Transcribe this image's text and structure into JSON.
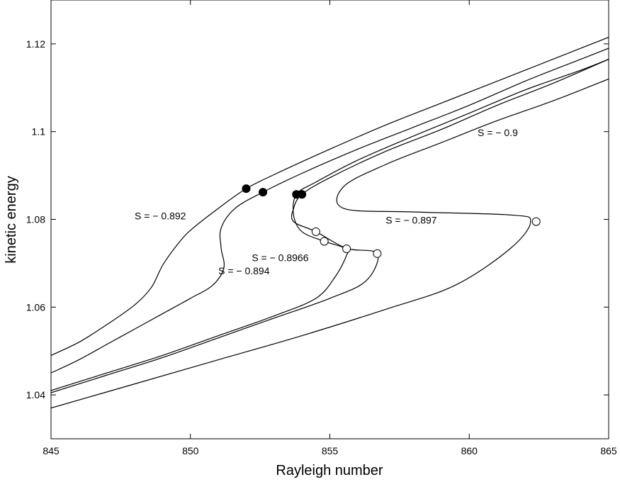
{
  "chart_data": {
    "type": "line",
    "title": "",
    "xlabel": "Rayleigh number",
    "ylabel": "kinetic energy",
    "xlim": [
      845,
      865
    ],
    "ylim": [
      1.03,
      1.13
    ],
    "xticks": [
      845,
      850,
      855,
      860,
      865
    ],
    "xtick_labels": [
      "845",
      "850",
      "855",
      "860",
      "865"
    ],
    "yticks": [
      1.04,
      1.06,
      1.08,
      1.1,
      1.12
    ],
    "ytick_labels": [
      "1.04",
      "1.06",
      "1.08",
      "1.1",
      "1.12"
    ],
    "grid": false,
    "line_color": "#000000",
    "series": [
      {
        "name": "S = − 0.892",
        "points": [
          [
            845,
            1.049
          ],
          [
            846,
            1.052
          ],
          [
            847,
            1.056
          ],
          [
            848,
            1.0605
          ],
          [
            848.6,
            1.0645
          ],
          [
            849,
            1.0695
          ],
          [
            849.5,
            1.074
          ],
          [
            850,
            1.0775
          ],
          [
            851,
            1.0825
          ],
          [
            852,
            1.087
          ],
          [
            853,
            1.0902
          ],
          [
            855,
            1.096
          ],
          [
            857,
            1.1015
          ],
          [
            859,
            1.1065
          ],
          [
            861,
            1.1115
          ],
          [
            863,
            1.1165
          ],
          [
            865,
            1.1215
          ]
        ]
      },
      {
        "name": "S = − 0.894",
        "points": [
          [
            845,
            1.045
          ],
          [
            846,
            1.048
          ],
          [
            847,
            1.0515
          ],
          [
            848,
            1.055
          ],
          [
            849,
            1.0585
          ],
          [
            850,
            1.062
          ],
          [
            850.8,
            1.065
          ],
          [
            851.2,
            1.069
          ],
          [
            851.1,
            1.0735
          ],
          [
            851.1,
            1.078
          ],
          [
            851.6,
            1.0825
          ],
          [
            852.6,
            1.0862
          ],
          [
            854,
            1.0905
          ],
          [
            856,
            1.096
          ],
          [
            858,
            1.101
          ],
          [
            860,
            1.106
          ],
          [
            862,
            1.1115
          ],
          [
            864,
            1.1165
          ],
          [
            865,
            1.119
          ]
        ]
      },
      {
        "name": "S = − 0.8966",
        "points": [
          [
            845,
            1.041
          ],
          [
            847,
            1.045
          ],
          [
            849,
            1.049
          ],
          [
            851,
            1.0535
          ],
          [
            853,
            1.058
          ],
          [
            854.5,
            1.062
          ],
          [
            855.2,
            1.067
          ],
          [
            855.6,
            1.0718
          ],
          [
            855.6,
            1.0733
          ],
          [
            854.8,
            1.075
          ],
          [
            854,
            1.0772
          ],
          [
            853.7,
            1.081
          ],
          [
            853.8,
            1.0857
          ],
          [
            854.5,
            1.0885
          ],
          [
            856,
            1.0935
          ],
          [
            858,
            1.099
          ],
          [
            860,
            1.1042
          ],
          [
            862,
            1.1095
          ],
          [
            864,
            1.114
          ],
          [
            865,
            1.1165
          ]
        ]
      },
      {
        "name": "S = − 0.897",
        "points": [
          [
            845,
            1.0405
          ],
          [
            847,
            1.0445
          ],
          [
            849,
            1.0485
          ],
          [
            851,
            1.053
          ],
          [
            853,
            1.0575
          ],
          [
            855,
            1.062
          ],
          [
            856.3,
            1.066
          ],
          [
            856.7,
            1.0722
          ],
          [
            855.6,
            1.0734
          ],
          [
            854.5,
            1.0772
          ],
          [
            853.7,
            1.0795
          ],
          [
            853.7,
            1.0825
          ],
          [
            854,
            1.0857
          ],
          [
            855,
            1.0895
          ],
          [
            857,
            1.0955
          ],
          [
            859,
            1.1005
          ],
          [
            861,
            1.106
          ],
          [
            863,
            1.111
          ],
          [
            865,
            1.1165
          ]
        ]
      },
      {
        "name": "S = − 0.9",
        "points": [
          [
            845,
            1.037
          ],
          [
            848,
            1.0425
          ],
          [
            851,
            1.048
          ],
          [
            854,
            1.0535
          ],
          [
            857,
            1.0595
          ],
          [
            859.5,
            1.065
          ],
          [
            861.5,
            1.0735
          ],
          [
            862.2,
            1.0795
          ],
          [
            861.5,
            1.081
          ],
          [
            858,
            1.0817
          ],
          [
            855.5,
            1.0825
          ],
          [
            855.5,
            1.0875
          ],
          [
            857,
            1.0925
          ],
          [
            859,
            1.0975
          ],
          [
            861,
            1.1025
          ],
          [
            863,
            1.107
          ],
          [
            865,
            1.112
          ]
        ]
      }
    ],
    "filled_markers": [
      [
        852,
        1.087
      ],
      [
        852.6,
        1.0862
      ],
      [
        853.8,
        1.0857
      ],
      [
        854,
        1.0857
      ]
    ],
    "open_markers": [
      [
        854.5,
        1.0772
      ],
      [
        854.8,
        1.075
      ],
      [
        855.6,
        1.0733
      ],
      [
        856.7,
        1.0722
      ],
      [
        862.4,
        1.0795
      ]
    ],
    "annotations": [
      {
        "text": "S = − 0.892",
        "x": 848,
        "y": 1.08
      },
      {
        "text": "S = − 0.894",
        "x": 851,
        "y": 1.0675
      },
      {
        "text": "S = − 0.8966",
        "x": 852.2,
        "y": 1.0705
      },
      {
        "text": "S = − 0.897",
        "x": 857,
        "y": 1.079
      },
      {
        "text": "S = − 0.9",
        "x": 860.3,
        "y": 1.099
      }
    ]
  }
}
